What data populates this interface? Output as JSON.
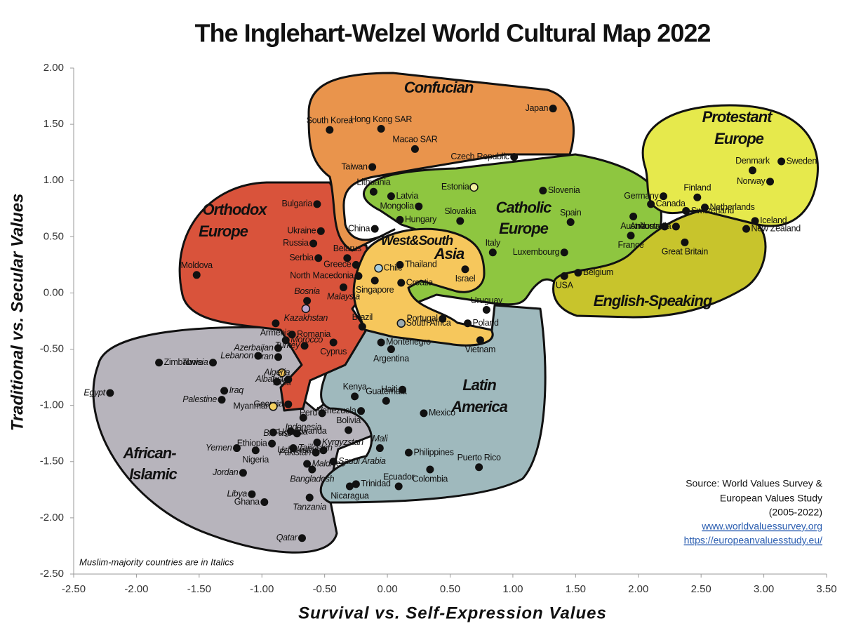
{
  "chart_data": {
    "type": "scatter",
    "title": "The Inglehart-Welzel World Cultural Map 2022",
    "xlabel": "Survival vs. Self-Expression Values",
    "ylabel": "Traditional vs. Secular Values",
    "xlim": [
      -2.5,
      3.5
    ],
    "ylim": [
      -2.5,
      2.0
    ],
    "xticks": [
      {
        "value": -2.5,
        "label": "-2.50"
      },
      {
        "value": -2.0,
        "label": "-2.00"
      },
      {
        "value": -1.5,
        "label": "-1.50"
      },
      {
        "value": -1.0,
        "label": "-1.00"
      },
      {
        "value": -0.5,
        "label": "-0.50"
      },
      {
        "value": 0,
        "label": "0.00"
      },
      {
        "value": 0.5,
        "label": "0.50"
      },
      {
        "value": 1.0,
        "label": "1.00"
      },
      {
        "value": 1.5,
        "label": "1.50"
      },
      {
        "value": 2.0,
        "label": "2.00"
      },
      {
        "value": 2.5,
        "label": "2.50"
      },
      {
        "value": 3.0,
        "label": "3.00"
      },
      {
        "value": 3.5,
        "label": "3.50"
      }
    ],
    "yticks": [
      {
        "value": 2.0,
        "label": "2.00"
      },
      {
        "value": 1.5,
        "label": "1.50"
      },
      {
        "value": 1.0,
        "label": "1.00"
      },
      {
        "value": 0.5,
        "label": "0.50"
      },
      {
        "value": 0,
        "label": "0.00"
      },
      {
        "value": -0.5,
        "label": "-0.50"
      },
      {
        "value": -1.0,
        "label": "-1.00"
      },
      {
        "value": -1.5,
        "label": "-1.50"
      },
      {
        "value": -2.0,
        "label": "-2.00"
      },
      {
        "value": -2.5,
        "label": "-2.50"
      }
    ],
    "point_color": "#111111",
    "regions": [
      {
        "name": [
          "African-",
          "Islamic"
        ],
        "color": "#b7b4bc"
      },
      {
        "name": [
          "Latin",
          "America"
        ],
        "color": "#9fb9bd"
      },
      {
        "name": [
          "Orthodox",
          "Europe"
        ],
        "color": "#d9533b"
      },
      {
        "name": [
          "Confucian"
        ],
        "color": "#e9944c"
      },
      {
        "name": [
          "Catholic",
          "Europe"
        ],
        "color": "#8ec640"
      },
      {
        "name": [
          "English-Speaking"
        ],
        "color": "#c8c42c"
      },
      {
        "name": [
          "Protestant",
          "Europe"
        ],
        "color": "#e6e94c"
      },
      {
        "name": [
          "West&South",
          "Asia"
        ],
        "color": "#f6c75c"
      }
    ],
    "points": [
      {
        "label": "Japan",
        "x": 1.32,
        "y": 1.64
      },
      {
        "label": "South Korea",
        "x": -0.46,
        "y": 1.45
      },
      {
        "label": "Hong Kong SAR",
        "x": -0.05,
        "y": 1.46
      },
      {
        "label": "Macao SAR",
        "x": 0.22,
        "y": 1.28
      },
      {
        "label": "Taiwan",
        "x": -0.12,
        "y": 1.12
      },
      {
        "label": "Czech Republic",
        "x": 1.01,
        "y": 1.21
      },
      {
        "label": "Lithuania",
        "x": -0.11,
        "y": 0.9
      },
      {
        "label": "Latvia",
        "x": 0.03,
        "y": 0.86
      },
      {
        "label": "Estonia",
        "x": 0.69,
        "y": 0.94,
        "color": "#f3eea0"
      },
      {
        "label": "Slovenia",
        "x": 1.24,
        "y": 0.91
      },
      {
        "label": "Mongolia",
        "x": 0.25,
        "y": 0.77
      },
      {
        "label": "Slovakia",
        "x": 0.58,
        "y": 0.64
      },
      {
        "label": "Hungary",
        "x": 0.1,
        "y": 0.65
      },
      {
        "label": "China",
        "x": -0.1,
        "y": 0.57
      },
      {
        "label": "Spain",
        "x": 1.46,
        "y": 0.63
      },
      {
        "label": "Bulgaria",
        "x": -0.56,
        "y": 0.79
      },
      {
        "label": "Ukraine",
        "x": -0.53,
        "y": 0.55
      },
      {
        "label": "Russia",
        "x": -0.59,
        "y": 0.44
      },
      {
        "label": "Belarus",
        "x": -0.32,
        "y": 0.31
      },
      {
        "label": "Serbia",
        "x": -0.55,
        "y": 0.31
      },
      {
        "label": "Greece",
        "x": -0.25,
        "y": 0.25
      },
      {
        "label": "North Macedonia",
        "x": -0.23,
        "y": 0.15
      },
      {
        "label": "Moldova",
        "x": -1.52,
        "y": 0.16
      },
      {
        "label": "Italy",
        "x": 0.84,
        "y": 0.36
      },
      {
        "label": "Luxembourg",
        "x": 1.41,
        "y": 0.36
      },
      {
        "label": "Belgium",
        "x": 1.52,
        "y": 0.18
      },
      {
        "label": "USA",
        "x": 1.41,
        "y": 0.15
      },
      {
        "label": "Thailand",
        "x": 0.1,
        "y": 0.25
      },
      {
        "label": "Chile",
        "x": -0.07,
        "y": 0.22,
        "color": "#a9cfe0"
      },
      {
        "label": "Israel",
        "x": 0.62,
        "y": 0.21
      },
      {
        "label": "Singapore",
        "x": -0.1,
        "y": 0.11
      },
      {
        "label": "Malaysia",
        "x": -0.35,
        "y": 0.05,
        "italic": true
      },
      {
        "label": "Croatia",
        "x": 0.11,
        "y": 0.09
      },
      {
        "label": "Bosnia",
        "x": -0.64,
        "y": -0.07,
        "italic": true
      },
      {
        "label": "Kazakhstan",
        "x": -0.65,
        "y": -0.14,
        "italic": true,
        "color": "#b8a8d0"
      },
      {
        "label": "Armenia",
        "x": -0.89,
        "y": -0.27
      },
      {
        "label": "Portugal",
        "x": 0.44,
        "y": -0.23
      },
      {
        "label": "Uruguay",
        "x": 0.79,
        "y": -0.15
      },
      {
        "label": "Poland",
        "x": 0.64,
        "y": -0.27
      },
      {
        "label": "South Africa",
        "x": 0.11,
        "y": -0.27,
        "color": "#9aaab0"
      },
      {
        "label": "Brazil",
        "x": -0.2,
        "y": -0.3
      },
      {
        "label": "Romania",
        "x": -0.76,
        "y": -0.37
      },
      {
        "label": "Morocco",
        "x": -0.81,
        "y": -0.42,
        "italic": true
      },
      {
        "label": "Azerbaijan",
        "x": -0.87,
        "y": -0.49,
        "italic": true
      },
      {
        "label": "Turkey",
        "x": -0.66,
        "y": -0.47,
        "italic": true
      },
      {
        "label": "Cyprus",
        "x": -0.43,
        "y": -0.44
      },
      {
        "label": "Montenegro",
        "x": -0.05,
        "y": -0.44
      },
      {
        "label": "Argentina",
        "x": 0.03,
        "y": -0.5
      },
      {
        "label": "Vietnam",
        "x": 0.74,
        "y": -0.42
      },
      {
        "label": "Tunisia",
        "x": -1.39,
        "y": -0.62,
        "italic": true
      },
      {
        "label": "Lebanon",
        "x": -1.03,
        "y": -0.56,
        "italic": true
      },
      {
        "label": "Iran",
        "x": -0.87,
        "y": -0.57,
        "italic": true
      },
      {
        "label": "Zimbabwe",
        "x": -1.82,
        "y": -0.62
      },
      {
        "label": "India",
        "x": -0.84,
        "y": -0.71,
        "italic": true,
        "color": "#f5c65a"
      },
      {
        "label": "Albania",
        "x": -0.79,
        "y": -0.77,
        "italic": true
      },
      {
        "label": "Algeria",
        "x": -0.88,
        "y": -0.79,
        "italic": true
      },
      {
        "label": "Egypt",
        "x": -2.21,
        "y": -0.89,
        "italic": true
      },
      {
        "label": "Iraq",
        "x": -1.3,
        "y": -0.87,
        "italic": true
      },
      {
        "label": "Palestine",
        "x": -1.32,
        "y": -0.95,
        "italic": true
      },
      {
        "label": "Georgia",
        "x": -0.79,
        "y": -0.99
      },
      {
        "label": "Myanmar",
        "x": -0.91,
        "y": -1.01,
        "color": "#f5d060"
      },
      {
        "label": "Kenya",
        "x": -0.26,
        "y": -0.92
      },
      {
        "label": "Haiti",
        "x": 0.12,
        "y": -0.86
      },
      {
        "label": "Guatemala",
        "x": -0.01,
        "y": -0.96
      },
      {
        "label": "Venezuela",
        "x": -0.21,
        "y": -1.05
      },
      {
        "label": "Mexico",
        "x": 0.29,
        "y": -1.07
      },
      {
        "label": "Indonesia",
        "x": -0.67,
        "y": -1.11,
        "italic": true
      },
      {
        "label": "Peru",
        "x": -0.52,
        "y": -1.07
      },
      {
        "label": "Rwanda",
        "x": -0.77,
        "y": -1.23
      },
      {
        "label": "Bolivia",
        "x": -0.31,
        "y": -1.22
      },
      {
        "label": "Uganda",
        "x": -0.91,
        "y": -1.24
      },
      {
        "label": "Ethiopia",
        "x": -0.92,
        "y": -1.34
      },
      {
        "label": "B. Faso",
        "x": -0.72,
        "y": -1.25,
        "italic": true
      },
      {
        "label": "Kyrgyzstan",
        "x": -0.56,
        "y": -1.33,
        "italic": true
      },
      {
        "label": "Tajikistan",
        "x": -0.75,
        "y": -1.38,
        "italic": true
      },
      {
        "label": "Uzbekistan",
        "x": -0.51,
        "y": -1.4,
        "italic": true
      },
      {
        "label": "Pakistan",
        "x": -0.57,
        "y": -1.42,
        "italic": true
      },
      {
        "label": "Yemen",
        "x": -1.2,
        "y": -1.38,
        "italic": true
      },
      {
        "label": "Nigeria",
        "x": -1.05,
        "y": -1.4
      },
      {
        "label": "Mali",
        "x": -0.06,
        "y": -1.38,
        "italic": true
      },
      {
        "label": "Philippines",
        "x": 0.17,
        "y": -1.42
      },
      {
        "label": "Maldives",
        "x": -0.64,
        "y": -1.52,
        "italic": true
      },
      {
        "label": "Saudi Arabia",
        "x": -0.43,
        "y": -1.5,
        "italic": true
      },
      {
        "label": "Puerto Rico",
        "x": 0.73,
        "y": -1.55
      },
      {
        "label": "Colombia",
        "x": 0.34,
        "y": -1.57
      },
      {
        "label": "Jordan",
        "x": -1.15,
        "y": -1.6,
        "italic": true
      },
      {
        "label": "Bangladesh",
        "x": -0.6,
        "y": -1.57,
        "italic": true
      },
      {
        "label": "Ecuador",
        "x": 0.09,
        "y": -1.72
      },
      {
        "label": "Trinidad",
        "x": -0.25,
        "y": -1.7
      },
      {
        "label": "Nicaragua",
        "x": -0.3,
        "y": -1.72
      },
      {
        "label": "Libya",
        "x": -1.08,
        "y": -1.79,
        "italic": true
      },
      {
        "label": "Tanzania",
        "x": -0.62,
        "y": -1.82,
        "italic": true
      },
      {
        "label": "Ghana",
        "x": -0.98,
        "y": -1.86
      },
      {
        "label": "Qatar",
        "x": -0.68,
        "y": -2.18,
        "italic": true
      },
      {
        "label": "Germany",
        "x": 2.2,
        "y": 0.86
      },
      {
        "label": "Finland",
        "x": 2.47,
        "y": 0.85
      },
      {
        "label": "Sweden",
        "x": 3.14,
        "y": 1.17
      },
      {
        "label": "Denmark",
        "x": 2.91,
        "y": 1.09
      },
      {
        "label": "Norway",
        "x": 3.05,
        "y": 0.99
      },
      {
        "label": "Netherlands",
        "x": 2.53,
        "y": 0.76
      },
      {
        "label": "Switzerland",
        "x": 2.38,
        "y": 0.73
      },
      {
        "label": "Iceland",
        "x": 2.93,
        "y": 0.64
      },
      {
        "label": "Canada",
        "x": 2.1,
        "y": 0.79
      },
      {
        "label": "Austria",
        "x": 1.96,
        "y": 0.68
      },
      {
        "label": "Andorra",
        "x": 2.21,
        "y": 0.59
      },
      {
        "label": "Australia",
        "x": 2.3,
        "y": 0.59
      },
      {
        "label": "New Zealand",
        "x": 2.86,
        "y": 0.57
      },
      {
        "label": "France",
        "x": 1.94,
        "y": 0.51
      },
      {
        "label": "Great Britain",
        "x": 2.37,
        "y": 0.45
      }
    ],
    "note": "Muslim-majority countries are in Italics",
    "source": [
      "Source: World Values Survey &",
      "European Values Study",
      "(2005-2022)"
    ],
    "links": [
      "www.worldvaluessurvey.org",
      "https://europeanvaluesstudy.eu/"
    ]
  }
}
